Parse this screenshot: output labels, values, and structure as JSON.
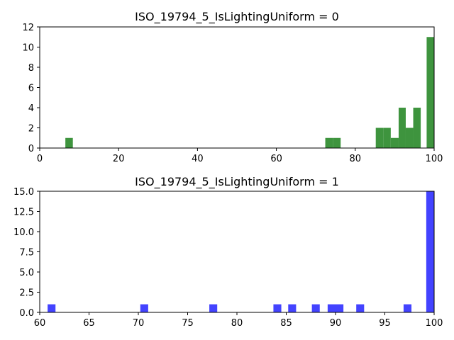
{
  "chart_data": [
    {
      "type": "bar",
      "title": "ISO_19794_5_IsLightingUniform = 0",
      "xlabel": "",
      "ylabel": "",
      "xlim": [
        0,
        100
      ],
      "ylim": [
        0,
        12
      ],
      "xticks": [
        "0",
        "20",
        "40",
        "60",
        "80",
        "100"
      ],
      "yticks": [
        "0",
        "2",
        "4",
        "6",
        "8",
        "10",
        "12"
      ],
      "color": "#2e8b2e",
      "bins": [
        {
          "x0": 6.5,
          "x1": 8.4,
          "value": 1
        },
        {
          "x0": 72.4,
          "x1": 74.4,
          "value": 1
        },
        {
          "x0": 74.4,
          "x1": 76.3,
          "value": 1
        },
        {
          "x0": 85.2,
          "x1": 87.1,
          "value": 2
        },
        {
          "x0": 87.1,
          "x1": 89.0,
          "value": 2
        },
        {
          "x0": 89.0,
          "x1": 91.0,
          "value": 1
        },
        {
          "x0": 91.0,
          "x1": 92.8,
          "value": 4
        },
        {
          "x0": 92.8,
          "x1": 94.7,
          "value": 2
        },
        {
          "x0": 94.7,
          "x1": 96.6,
          "value": 4
        },
        {
          "x0": 98.1,
          "x1": 100.0,
          "value": 11
        }
      ]
    },
    {
      "type": "bar",
      "title": "ISO_19794_5_IsLightingUniform = 1",
      "xlabel": "",
      "ylabel": "",
      "xlim": [
        60,
        100
      ],
      "ylim": [
        0,
        15
      ],
      "xticks": [
        "60",
        "65",
        "70",
        "75",
        "80",
        "85",
        "90",
        "95",
        "100"
      ],
      "yticks": [
        "0.0",
        "2.5",
        "5.0",
        "7.5",
        "10.0",
        "12.5",
        "15.0"
      ],
      "color": "#3333ff",
      "bins": [
        {
          "x0": 60.8,
          "x1": 61.6,
          "value": 1
        },
        {
          "x0": 70.2,
          "x1": 71.0,
          "value": 1
        },
        {
          "x0": 77.2,
          "x1": 78.0,
          "value": 1
        },
        {
          "x0": 83.7,
          "x1": 84.5,
          "value": 1
        },
        {
          "x0": 85.2,
          "x1": 86.0,
          "value": 1
        },
        {
          "x0": 87.6,
          "x1": 88.4,
          "value": 1
        },
        {
          "x0": 89.2,
          "x1": 90.0,
          "value": 1
        },
        {
          "x0": 90.0,
          "x1": 90.8,
          "value": 1
        },
        {
          "x0": 92.1,
          "x1": 92.9,
          "value": 1
        },
        {
          "x0": 96.9,
          "x1": 97.7,
          "value": 1
        },
        {
          "x0": 99.2,
          "x1": 100.0,
          "value": 15
        }
      ]
    }
  ]
}
